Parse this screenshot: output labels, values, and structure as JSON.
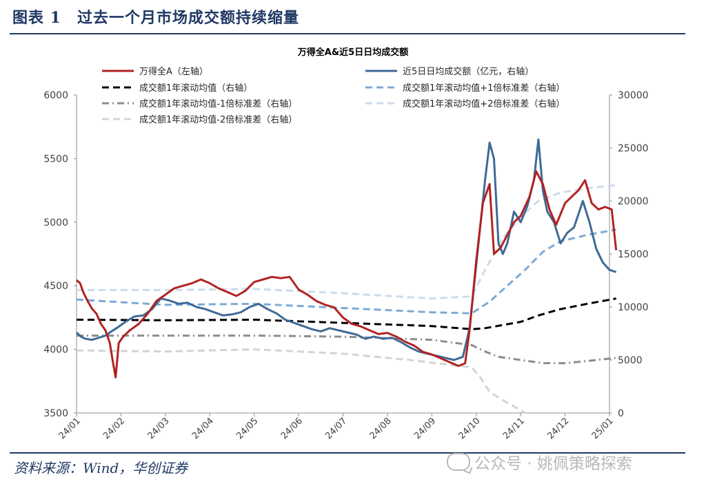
{
  "header": {
    "title": "图表 1　过去一个月市场成交额持续缩量"
  },
  "footer": {
    "source": "资料来源：Wind，华创证券",
    "watermark": "公众号 · 姚佩策略探索"
  },
  "chart_data": {
    "type": "line",
    "title": "万得全A&近5日日均成交额",
    "x_ticks": [
      "24/01",
      "24/02",
      "24/03",
      "24/04",
      "24/05",
      "24/06",
      "24/07",
      "24/08",
      "24/09",
      "24/10",
      "24/11",
      "24/12",
      "25/01"
    ],
    "y_left": {
      "min": 3500,
      "max": 6000,
      "ticks": [
        3500,
        4000,
        4500,
        5000,
        5500,
        6000
      ]
    },
    "y_right": {
      "min": 0,
      "max": 30000,
      "ticks": [
        0,
        5000,
        10000,
        15000,
        20000,
        25000,
        30000
      ]
    },
    "grid": false,
    "legend_position": "top",
    "series": [
      {
        "name": "万得全A（左轴）",
        "axis": "left",
        "color": "#b22222",
        "style": "solid",
        "points": [
          [
            0.0,
            4545
          ],
          [
            0.08,
            4520
          ],
          [
            0.15,
            4450
          ],
          [
            0.25,
            4380
          ],
          [
            0.35,
            4320
          ],
          [
            0.45,
            4280
          ],
          [
            0.55,
            4200
          ],
          [
            0.65,
            4150
          ],
          [
            0.75,
            4050
          ],
          [
            0.82,
            3900
          ],
          [
            0.88,
            3780
          ],
          [
            0.95,
            4050
          ],
          [
            1.05,
            4100
          ],
          [
            1.2,
            4150
          ],
          [
            1.4,
            4200
          ],
          [
            1.6,
            4280
          ],
          [
            1.8,
            4380
          ],
          [
            2.0,
            4430
          ],
          [
            2.2,
            4480
          ],
          [
            2.4,
            4500
          ],
          [
            2.6,
            4520
          ],
          [
            2.8,
            4550
          ],
          [
            3.0,
            4520
          ],
          [
            3.2,
            4480
          ],
          [
            3.4,
            4450
          ],
          [
            3.6,
            4420
          ],
          [
            3.8,
            4460
          ],
          [
            4.0,
            4530
          ],
          [
            4.2,
            4550
          ],
          [
            4.4,
            4570
          ],
          [
            4.6,
            4560
          ],
          [
            4.8,
            4570
          ],
          [
            5.0,
            4470
          ],
          [
            5.2,
            4430
          ],
          [
            5.4,
            4380
          ],
          [
            5.6,
            4350
          ],
          [
            5.8,
            4330
          ],
          [
            6.0,
            4250
          ],
          [
            6.2,
            4200
          ],
          [
            6.4,
            4180
          ],
          [
            6.6,
            4150
          ],
          [
            6.8,
            4120
          ],
          [
            7.0,
            4130
          ],
          [
            7.2,
            4100
          ],
          [
            7.4,
            4060
          ],
          [
            7.6,
            4030
          ],
          [
            7.8,
            3980
          ],
          [
            8.0,
            3960
          ],
          [
            8.2,
            3930
          ],
          [
            8.4,
            3900
          ],
          [
            8.6,
            3870
          ],
          [
            8.75,
            3890
          ],
          [
            8.85,
            4150
          ],
          [
            9.0,
            4700
          ],
          [
            9.15,
            5150
          ],
          [
            9.3,
            5300
          ],
          [
            9.4,
            4750
          ],
          [
            9.55,
            4800
          ],
          [
            9.7,
            4900
          ],
          [
            9.85,
            5000
          ],
          [
            10.0,
            5050
          ],
          [
            10.2,
            5200
          ],
          [
            10.35,
            5400
          ],
          [
            10.5,
            5300
          ],
          [
            10.65,
            5100
          ],
          [
            10.8,
            4980
          ],
          [
            11.0,
            5150
          ],
          [
            11.15,
            5200
          ],
          [
            11.3,
            5250
          ],
          [
            11.45,
            5330
          ],
          [
            11.6,
            5150
          ],
          [
            11.75,
            5100
          ],
          [
            11.9,
            5120
          ],
          [
            12.05,
            5100
          ],
          [
            12.15,
            4780
          ]
        ]
      },
      {
        "name": "近5日日均成交额（亿元，右轴）",
        "axis": "right",
        "color": "#3e6a96",
        "style": "solid",
        "points": [
          [
            0.0,
            7600
          ],
          [
            0.1,
            7200
          ],
          [
            0.2,
            7000
          ],
          [
            0.35,
            6900
          ],
          [
            0.5,
            7100
          ],
          [
            0.65,
            7300
          ],
          [
            0.75,
            7600
          ],
          [
            0.9,
            8000
          ],
          [
            1.1,
            8600
          ],
          [
            1.3,
            9100
          ],
          [
            1.5,
            9200
          ],
          [
            1.7,
            9800
          ],
          [
            1.9,
            10800
          ],
          [
            2.1,
            10600
          ],
          [
            2.3,
            10300
          ],
          [
            2.5,
            10400
          ],
          [
            2.7,
            10000
          ],
          [
            2.9,
            9800
          ],
          [
            3.1,
            9500
          ],
          [
            3.3,
            9200
          ],
          [
            3.5,
            9300
          ],
          [
            3.7,
            9500
          ],
          [
            3.9,
            10000
          ],
          [
            4.1,
            10300
          ],
          [
            4.3,
            9800
          ],
          [
            4.5,
            9400
          ],
          [
            4.7,
            8800
          ],
          [
            4.9,
            8500
          ],
          [
            5.1,
            8200
          ],
          [
            5.3,
            7900
          ],
          [
            5.5,
            7700
          ],
          [
            5.7,
            8000
          ],
          [
            5.9,
            7800
          ],
          [
            6.1,
            7600
          ],
          [
            6.3,
            7400
          ],
          [
            6.5,
            7000
          ],
          [
            6.7,
            7200
          ],
          [
            6.9,
            7000
          ],
          [
            7.1,
            7100
          ],
          [
            7.3,
            6700
          ],
          [
            7.5,
            6200
          ],
          [
            7.7,
            5800
          ],
          [
            7.9,
            5600
          ],
          [
            8.1,
            5400
          ],
          [
            8.3,
            5200
          ],
          [
            8.5,
            5000
          ],
          [
            8.7,
            5300
          ],
          [
            8.85,
            8000
          ],
          [
            9.0,
            14000
          ],
          [
            9.1,
            18000
          ],
          [
            9.2,
            22000
          ],
          [
            9.3,
            25500
          ],
          [
            9.4,
            24000
          ],
          [
            9.5,
            16000
          ],
          [
            9.6,
            15000
          ],
          [
            9.7,
            16000
          ],
          [
            9.85,
            19000
          ],
          [
            10.0,
            18000
          ],
          [
            10.15,
            19500
          ],
          [
            10.3,
            22000
          ],
          [
            10.4,
            25800
          ],
          [
            10.5,
            21000
          ],
          [
            10.6,
            19000
          ],
          [
            10.75,
            18000
          ],
          [
            10.9,
            16000
          ],
          [
            11.05,
            17000
          ],
          [
            11.2,
            17500
          ],
          [
            11.4,
            20000
          ],
          [
            11.55,
            18000
          ],
          [
            11.7,
            15500
          ],
          [
            11.85,
            14200
          ],
          [
            12.0,
            13500
          ],
          [
            12.15,
            13300
          ]
        ]
      },
      {
        "name": "成交额1年滚动均值（右轴）",
        "axis": "right",
        "color": "#000000",
        "style": "dash",
        "points": [
          [
            0.0,
            8800
          ],
          [
            2.0,
            8750
          ],
          [
            4.0,
            8800
          ],
          [
            6.0,
            8500
          ],
          [
            8.0,
            8200
          ],
          [
            8.9,
            7900
          ],
          [
            9.2,
            8000
          ],
          [
            9.6,
            8300
          ],
          [
            10.0,
            8600
          ],
          [
            10.4,
            9200
          ],
          [
            10.9,
            9800
          ],
          [
            11.5,
            10300
          ],
          [
            12.15,
            10800
          ]
        ]
      },
      {
        "name": "成交额1年滚动均值+1倍标准差（右轴）",
        "axis": "right",
        "color": "#7aaad6",
        "style": "dash",
        "points": [
          [
            0.0,
            10700
          ],
          [
            2.0,
            10200
          ],
          [
            4.0,
            10300
          ],
          [
            6.0,
            9900
          ],
          [
            8.0,
            9500
          ],
          [
            8.9,
            9400
          ],
          [
            9.3,
            10500
          ],
          [
            9.7,
            12000
          ],
          [
            10.1,
            13500
          ],
          [
            10.5,
            15200
          ],
          [
            10.9,
            16200
          ],
          [
            11.5,
            16800
          ],
          [
            12.15,
            17300
          ]
        ]
      },
      {
        "name": "成交额1年滚动均值-1倍标准差（右轴）",
        "axis": "right",
        "color": "#8c8c8c",
        "style": "dashdot",
        "points": [
          [
            0.0,
            7300
          ],
          [
            2.0,
            7300
          ],
          [
            4.0,
            7300
          ],
          [
            6.0,
            7200
          ],
          [
            8.0,
            6900
          ],
          [
            8.9,
            6400
          ],
          [
            9.2,
            5800
          ],
          [
            9.5,
            5300
          ],
          [
            10.0,
            5000
          ],
          [
            10.5,
            4700
          ],
          [
            11.0,
            4700
          ],
          [
            11.5,
            4900
          ],
          [
            12.15,
            5200
          ]
        ]
      },
      {
        "name": "成交额1年滚动均值+2倍标准差（右轴）",
        "axis": "right",
        "color": "#ccdaea",
        "style": "dash",
        "points": [
          [
            0.0,
            11600
          ],
          [
            2.0,
            11600
          ],
          [
            4.0,
            11700
          ],
          [
            6.0,
            11300
          ],
          [
            8.0,
            10800
          ],
          [
            8.9,
            11000
          ],
          [
            9.2,
            13500
          ],
          [
            9.6,
            16500
          ],
          [
            10.0,
            18500
          ],
          [
            10.4,
            20000
          ],
          [
            10.9,
            20800
          ],
          [
            11.5,
            21200
          ],
          [
            12.15,
            21500
          ]
        ]
      },
      {
        "name": "成交额1年滚动均值-2倍标准差（右轴）",
        "axis": "right",
        "color": "#d3d3d3",
        "style": "dash",
        "points": [
          [
            0.0,
            5900
          ],
          [
            2.0,
            5800
          ],
          [
            4.0,
            6000
          ],
          [
            6.0,
            5600
          ],
          [
            7.5,
            5000
          ],
          [
            8.5,
            4500
          ],
          [
            8.9,
            4300
          ],
          [
            9.1,
            3300
          ],
          [
            9.3,
            2000
          ],
          [
            9.6,
            1200
          ],
          [
            9.9,
            500
          ],
          [
            10.1,
            0
          ]
        ]
      }
    ]
  }
}
